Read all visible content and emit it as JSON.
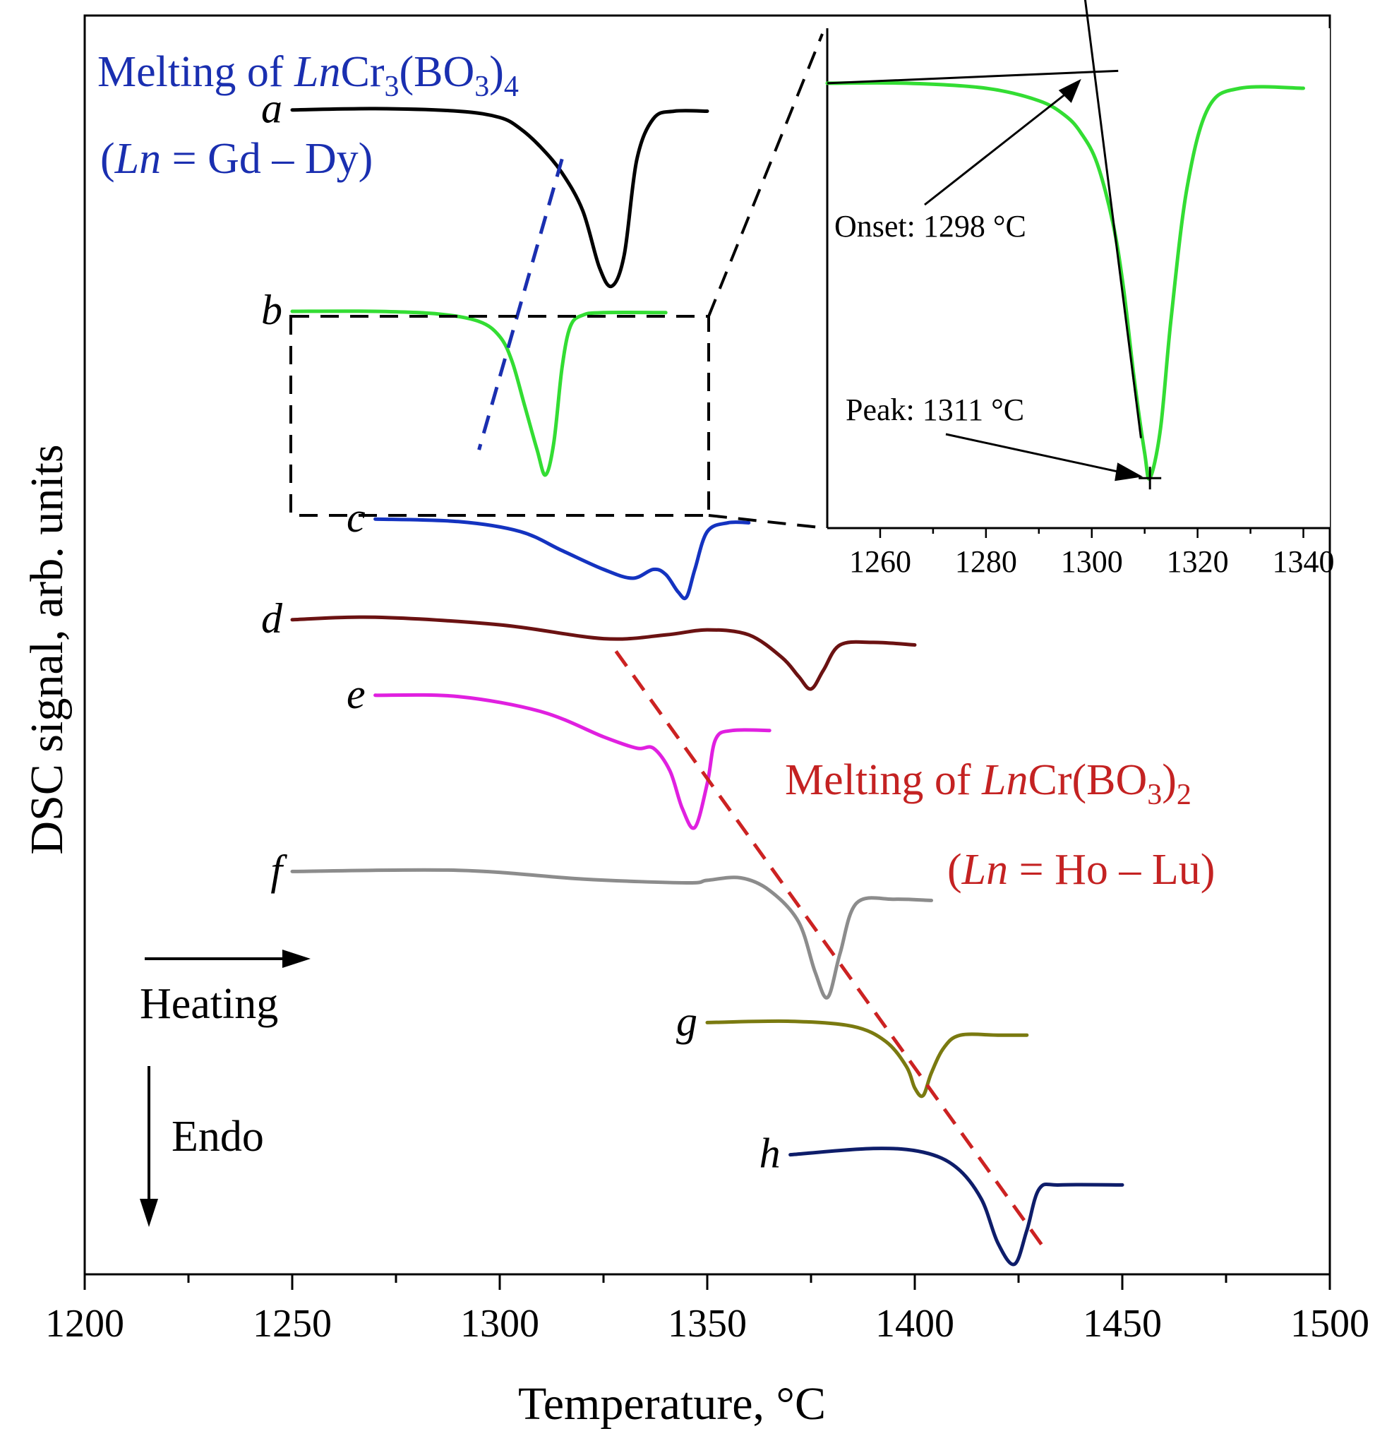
{
  "chart_data": {
    "type": "line",
    "main": {
      "xlabel": "Temperature, °C",
      "ylabel": "DSC signal, arb. units",
      "xlim": [
        1200,
        1500
      ],
      "xticks": [
        1200,
        1250,
        1300,
        1350,
        1400,
        1450,
        1500
      ],
      "grid": false,
      "series": [
        {
          "name": "a",
          "color": "#000000",
          "baseline": 0.925,
          "x": [
            1250,
            1270,
            1290,
            1300,
            1305,
            1310,
            1315,
            1320,
            1324,
            1327,
            1330,
            1333,
            1337,
            1342,
            1350
          ],
          "y": [
            0.925,
            0.926,
            0.924,
            0.919,
            0.91,
            0.895,
            0.875,
            0.845,
            0.8,
            0.785,
            0.81,
            0.885,
            0.918,
            0.924,
            0.924
          ]
        },
        {
          "name": "b",
          "color": "#33dd33",
          "baseline": 0.765,
          "x": [
            1250,
            1270,
            1285,
            1295,
            1300,
            1303,
            1306,
            1309,
            1311,
            1313,
            1315,
            1317,
            1320,
            1325,
            1340
          ],
          "y": [
            0.765,
            0.765,
            0.763,
            0.757,
            0.745,
            0.725,
            0.69,
            0.655,
            0.635,
            0.66,
            0.72,
            0.753,
            0.762,
            0.764,
            0.764
          ]
        },
        {
          "name": "c",
          "color": "#1433c0",
          "baseline": 0.6,
          "x": [
            1270,
            1290,
            1305,
            1315,
            1325,
            1332,
            1337,
            1340,
            1343,
            1345,
            1347,
            1350,
            1355,
            1360
          ],
          "y": [
            0.6,
            0.598,
            0.59,
            0.575,
            0.56,
            0.553,
            0.56,
            0.556,
            0.542,
            0.538,
            0.56,
            0.59,
            0.597,
            0.597
          ]
        },
        {
          "name": "d",
          "color": "#6b1212",
          "baseline": 0.52,
          "x": [
            1250,
            1270,
            1300,
            1325,
            1340,
            1350,
            1360,
            1368,
            1372,
            1375,
            1378,
            1382,
            1390,
            1400
          ],
          "y": [
            0.52,
            0.522,
            0.516,
            0.505,
            0.508,
            0.512,
            0.508,
            0.49,
            0.475,
            0.465,
            0.48,
            0.5,
            0.502,
            0.5
          ]
        },
        {
          "name": "e",
          "color": "#e020e0",
          "baseline": 0.46,
          "x": [
            1270,
            1290,
            1310,
            1325,
            1333,
            1337,
            1341,
            1344,
            1347,
            1350,
            1352,
            1356,
            1365
          ],
          "y": [
            0.46,
            0.459,
            0.447,
            0.427,
            0.418,
            0.418,
            0.4,
            0.37,
            0.355,
            0.39,
            0.425,
            0.432,
            0.432
          ]
        },
        {
          "name": "f",
          "color": "#8c8c8c",
          "baseline": 0.32,
          "x": [
            1250,
            1290,
            1320,
            1345,
            1350,
            1358,
            1365,
            1372,
            1376,
            1379,
            1382,
            1386,
            1395,
            1404
          ],
          "y": [
            0.32,
            0.321,
            0.314,
            0.311,
            0.313,
            0.315,
            0.305,
            0.28,
            0.24,
            0.22,
            0.255,
            0.295,
            0.298,
            0.297
          ]
        },
        {
          "name": "g",
          "color": "#7a7a10",
          "baseline": 0.2,
          "x": [
            1350,
            1370,
            1385,
            1393,
            1398,
            1400,
            1402,
            1404,
            1407,
            1411,
            1420,
            1427
          ],
          "y": [
            0.2,
            0.201,
            0.197,
            0.185,
            0.165,
            0.148,
            0.142,
            0.16,
            0.18,
            0.19,
            0.19,
            0.19
          ]
        },
        {
          "name": "h",
          "color": "#0e1d6a",
          "baseline": 0.095,
          "x": [
            1370,
            1390,
            1402,
            1410,
            1416,
            1420,
            1424,
            1427,
            1430,
            1435,
            1450
          ],
          "y": [
            0.095,
            0.1,
            0.097,
            0.085,
            0.06,
            0.025,
            0.008,
            0.035,
            0.068,
            0.071,
            0.071
          ]
        }
      ],
      "guide_lines": [
        {
          "color": "#1a2fb0",
          "x": [
            1315,
            1295
          ],
          "y": [
            0.886,
            0.655
          ]
        },
        {
          "color": "#cc2222",
          "x": [
            1328,
            1432
          ],
          "y": [
            0.495,
            0.017
          ]
        }
      ],
      "annotations": {
        "blue_title": "Melting of LnCr3(BO3)4",
        "blue_sub": "(Ln = Gd – Dy)",
        "red_title": "Melting of LnCr(BO3)2",
        "red_sub": "(Ln = Ho – Lu)",
        "heating": "Heating",
        "endo": "Endo"
      }
    },
    "inset": {
      "xlim": [
        1250,
        1345
      ],
      "xticks": [
        1260,
        1280,
        1300,
        1320,
        1340
      ],
      "series_name": "b",
      "color": "#33dd33",
      "x": [
        1250,
        1265,
        1280,
        1290,
        1295,
        1298,
        1301,
        1304,
        1306,
        1308,
        1310,
        1311,
        1313,
        1315,
        1318,
        1322,
        1328,
        1340
      ],
      "y": [
        0.89,
        0.89,
        0.88,
        0.855,
        0.825,
        0.79,
        0.73,
        0.61,
        0.48,
        0.3,
        0.15,
        0.1,
        0.2,
        0.42,
        0.68,
        0.84,
        0.88,
        0.88
      ],
      "onset_label": "Onset: 1298 °C",
      "peak_label": "Peak: 1311 °C",
      "onset": 1298,
      "peak": 1311
    }
  }
}
